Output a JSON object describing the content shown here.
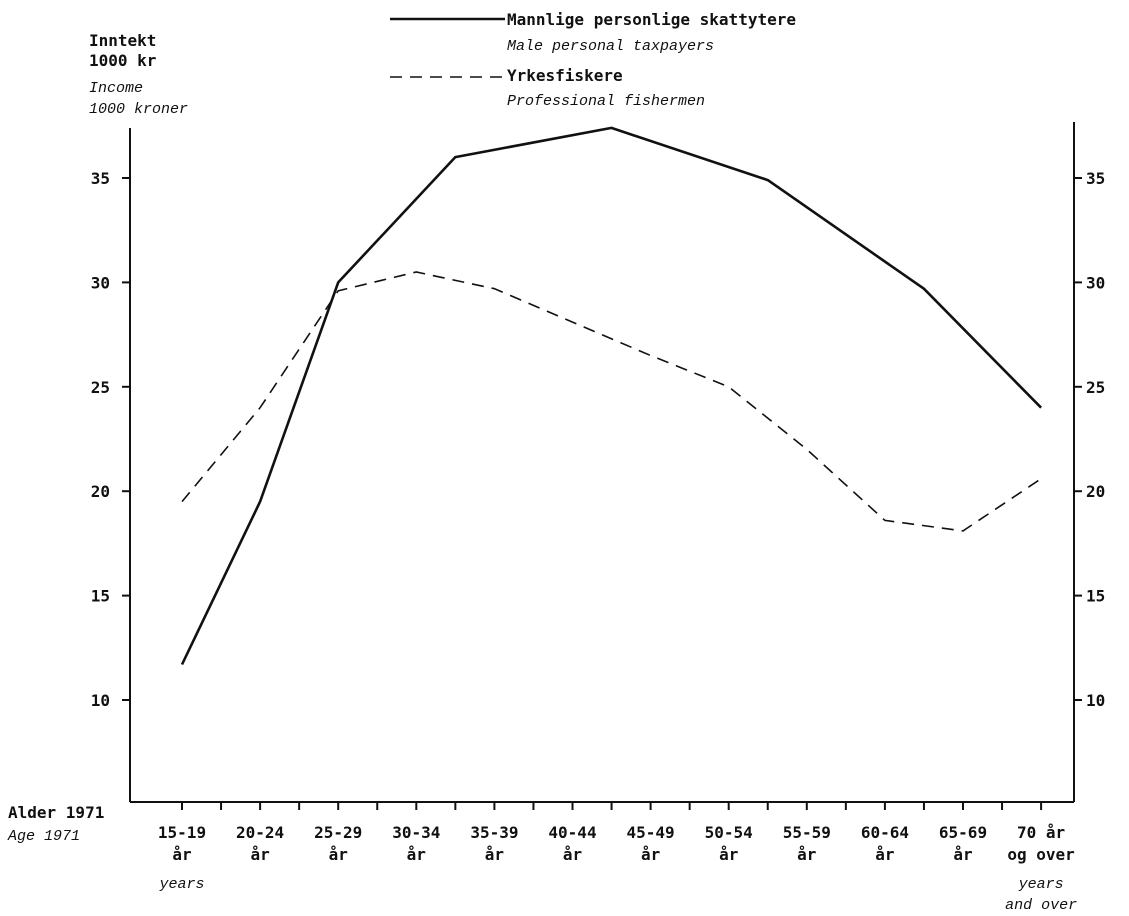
{
  "chart_data": {
    "type": "line",
    "y_title_no": [
      "Inntekt",
      "1000 kr"
    ],
    "y_title_en": [
      "Income",
      "1000 kroner"
    ],
    "x_title_no": "Alder 1971",
    "x_title_en": "Age 1971",
    "ylim": [
      5,
      37.5
    ],
    "yticks": [
      10,
      15,
      20,
      25,
      30,
      35
    ],
    "ytick_labels": [
      "10",
      "15",
      "20",
      "25",
      "30",
      "35"
    ],
    "categories": [
      {
        "line1": "15-19",
        "line2": "år",
        "line3": "years",
        "line4": ""
      },
      {
        "line1": "20-24",
        "line2": "år",
        "line3": "",
        "line4": ""
      },
      {
        "line1": "25-29",
        "line2": "år",
        "line3": "",
        "line4": ""
      },
      {
        "line1": "30-34",
        "line2": "år",
        "line3": "",
        "line4": ""
      },
      {
        "line1": "35-39",
        "line2": "år",
        "line3": "",
        "line4": ""
      },
      {
        "line1": "40-44",
        "line2": "år",
        "line3": "",
        "line4": ""
      },
      {
        "line1": "45-49",
        "line2": "år",
        "line3": "",
        "line4": ""
      },
      {
        "line1": "50-54",
        "line2": "år",
        "line3": "",
        "line4": ""
      },
      {
        "line1": "55-59",
        "line2": "år",
        "line3": "",
        "line4": ""
      },
      {
        "line1": "60-64",
        "line2": "år",
        "line3": "",
        "line4": ""
      },
      {
        "line1": "65-69",
        "line2": "år",
        "line3": "",
        "line4": ""
      },
      {
        "line1": "70 år",
        "line2": "og over",
        "line3": "years",
        "line4": "and over"
      }
    ],
    "series": [
      {
        "name": "Mannlige personlige skattytere",
        "name_en": "Male personal taxpayers",
        "style": "solid",
        "points": [
          [
            0,
            11.7
          ],
          [
            1,
            19.5
          ],
          [
            2,
            30.0
          ],
          [
            3.5,
            36.0
          ],
          [
            5.5,
            37.4
          ],
          [
            7.5,
            34.9
          ],
          [
            9.5,
            29.7
          ],
          [
            11,
            24.0
          ]
        ]
      },
      {
        "name": "Yrkesfiskere",
        "name_en": "Professional fishermen",
        "style": "dashed",
        "points": [
          [
            0,
            19.5
          ],
          [
            1,
            24.0
          ],
          [
            2,
            29.6
          ],
          [
            3,
            30.5
          ],
          [
            4,
            29.7
          ],
          [
            5,
            28.1
          ],
          [
            6,
            26.5
          ],
          [
            7,
            25.0
          ],
          [
            8,
            22.0
          ],
          [
            9,
            18.6
          ],
          [
            10,
            18.1
          ],
          [
            11,
            20.6
          ]
        ]
      }
    ],
    "grid": false,
    "legend_position": "top-center"
  }
}
